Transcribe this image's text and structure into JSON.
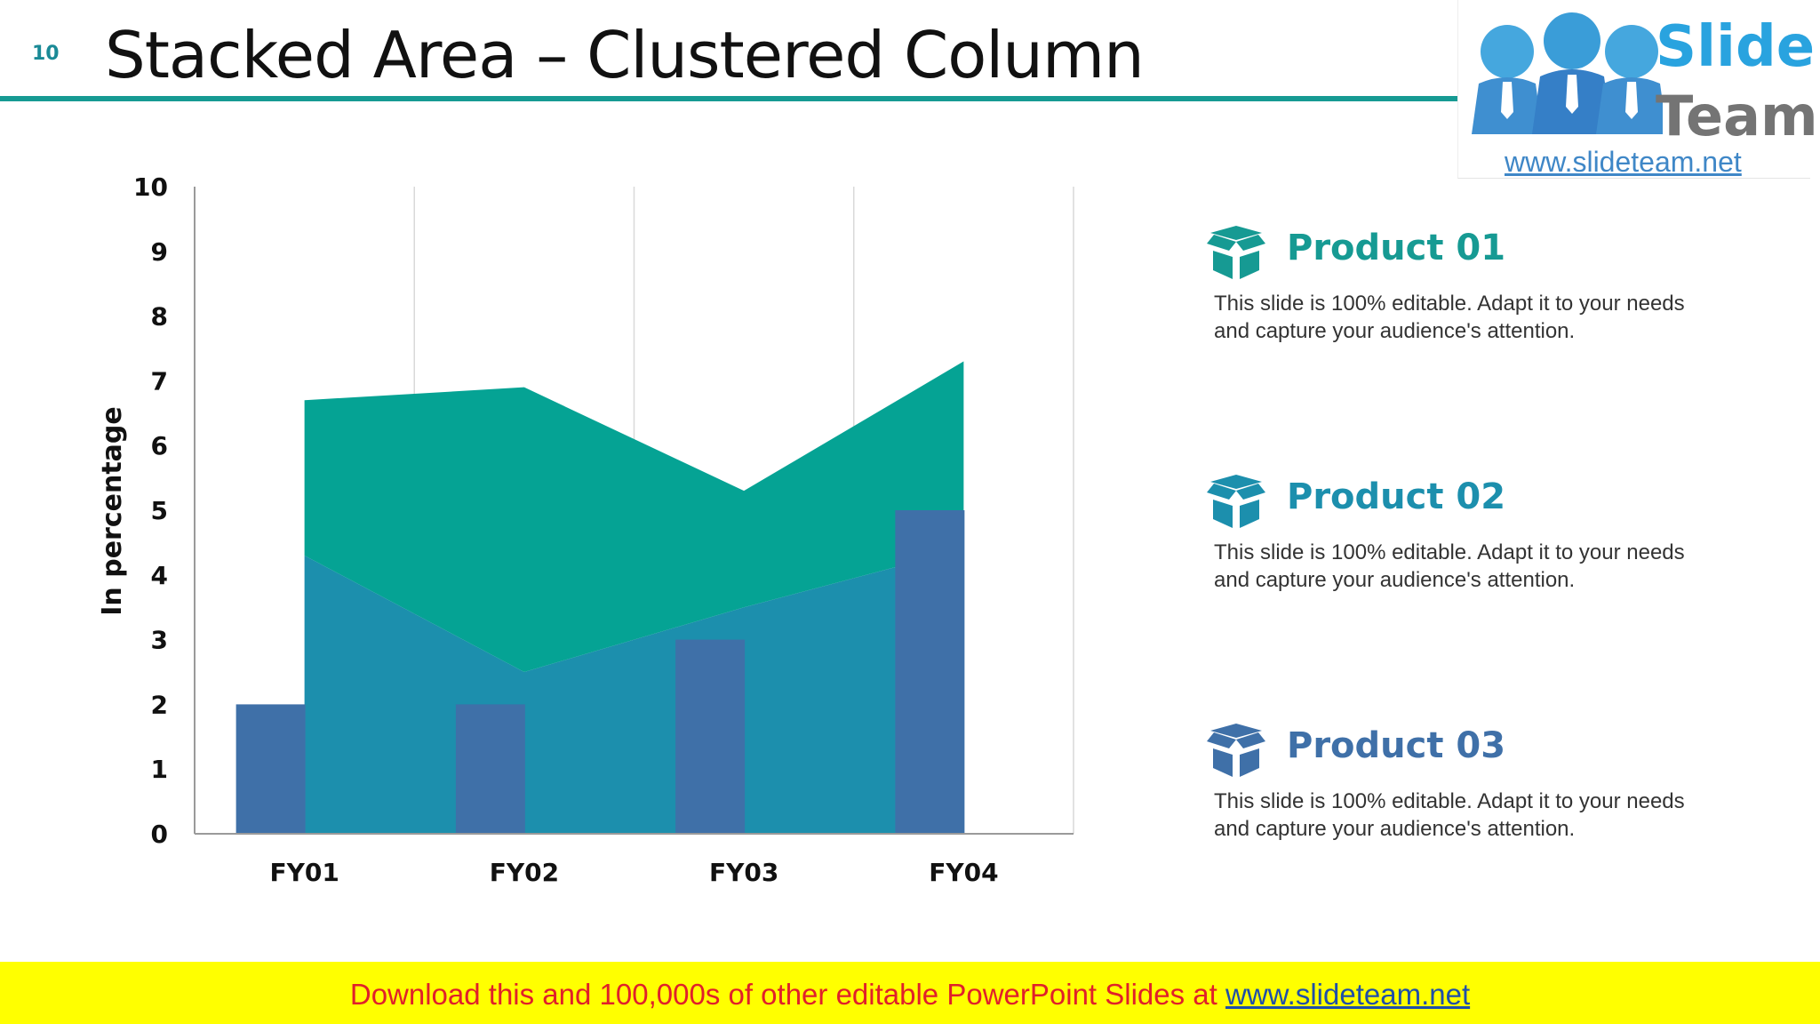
{
  "page": {
    "number": "10",
    "title": "Stacked Area – Clustered Column"
  },
  "logo": {
    "word1": "Slide",
    "word2": "Team",
    "url": "www.slideteam.net"
  },
  "colors": {
    "teal": "#169a93",
    "area_top": "#05a394",
    "area_bottom": "#1c8fad",
    "column": "#3f70a8",
    "grid": "#d9d9d9",
    "axis": "#9a9a9a",
    "product01": "#169a93",
    "product02": "#1c8fad",
    "product03": "#3f70a8",
    "banner_bg": "#ffff00",
    "banner_text": "#e0202a",
    "banner_link": "#1f4fa8"
  },
  "chart_data": {
    "type": "bar",
    "title": "",
    "ylabel": "In percentage",
    "xlabel": "",
    "ylim": [
      0,
      10
    ],
    "yticks": [
      "0",
      "1",
      "2",
      "3",
      "4",
      "5",
      "6",
      "7",
      "8",
      "9",
      "10"
    ],
    "categories": [
      "FY01",
      "FY02",
      "FY03",
      "FY04"
    ],
    "grid": "vertical",
    "legend": "right",
    "series": [
      {
        "name": "Product 03",
        "kind": "column",
        "values": [
          2,
          2,
          3,
          5
        ]
      },
      {
        "name": "Product 02",
        "kind": "area",
        "values": [
          4.3,
          2.5,
          3.5,
          4.4
        ]
      },
      {
        "name": "Product 01",
        "kind": "area",
        "values": [
          2.4,
          4.4,
          1.8,
          2.9
        ]
      }
    ]
  },
  "legend": [
    {
      "name": "Product 01",
      "desc_line1": "This slide is 100% editable. Adapt it to your needs",
      "desc_line2": "and capture your audience's attention."
    },
    {
      "name": "Product 02",
      "desc_line1": "This slide is 100% editable. Adapt it to your needs",
      "desc_line2": "and capture your audience's attention."
    },
    {
      "name": "Product 03",
      "desc_line1": "This slide is 100% editable. Adapt it to your needs",
      "desc_line2": "and capture your audience's attention."
    }
  ],
  "banner": {
    "text": "Download this and 100,000s of other editable PowerPoint Slides at ",
    "link": "www.slideteam.net"
  }
}
